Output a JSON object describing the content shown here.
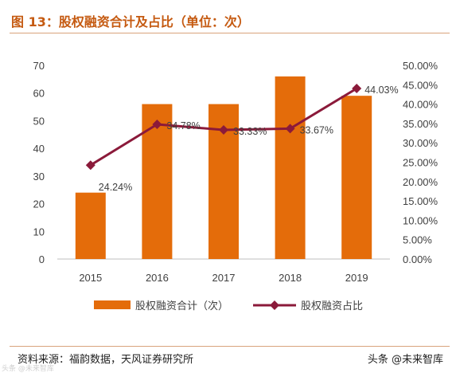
{
  "header": {
    "title": "图 13：股权融资合计及占比（单位：次）"
  },
  "footer": {
    "source": "资料来源：福韵数据，天风证券研究所",
    "watermark": "头条 @未来智库",
    "watermark_left": "头条 @未来智库"
  },
  "colors": {
    "bar": "#e46c0a",
    "line": "#8b1a3a",
    "title": "#c55a11",
    "axis": "#bfbfbf"
  },
  "chart_data": {
    "type": "bar",
    "categories": [
      "2015",
      "2016",
      "2017",
      "2018",
      "2019"
    ],
    "series": [
      {
        "name": "股权融资合计（次）",
        "type": "bar",
        "axis": "left",
        "values": [
          24,
          56,
          56,
          66,
          59
        ]
      },
      {
        "name": "股权融资占比",
        "type": "line",
        "axis": "right",
        "values": [
          24.24,
          34.78,
          33.33,
          33.67,
          44.03
        ],
        "labels": [
          "24.24%",
          "34.78%",
          "33.33%",
          "33.67%",
          "44.03%"
        ]
      }
    ],
    "y_left": {
      "min": 0,
      "max": 70,
      "ticks": [
        "0",
        "10",
        "20",
        "30",
        "40",
        "50",
        "60",
        "70"
      ]
    },
    "y_right": {
      "min": 0,
      "max": 50,
      "ticks": [
        "0.00%",
        "5.00%",
        "10.00%",
        "15.00%",
        "20.00%",
        "25.00%",
        "30.00%",
        "35.00%",
        "40.00%",
        "45.00%",
        "50.00%"
      ]
    },
    "grid": false,
    "legend": "bottom"
  }
}
